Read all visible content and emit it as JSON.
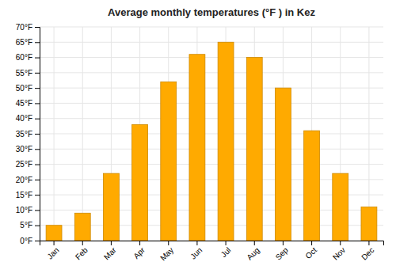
{
  "chart_data": {
    "type": "bar",
    "title": "Average monthly temperatures (°F ) in Kez",
    "categories": [
      "Jan",
      "Feb",
      "Mar",
      "Apr",
      "May",
      "Jun",
      "Jul",
      "Aug",
      "Sep",
      "Oct",
      "Nov",
      "Dec"
    ],
    "values": [
      5,
      9,
      22,
      38,
      52,
      61,
      65,
      60,
      50,
      36,
      22,
      11
    ],
    "color": "#FFAA00",
    "ylim": [
      0,
      70
    ],
    "yticks": [
      {
        "value": 0,
        "label": "0°F"
      },
      {
        "value": 5,
        "label": "5°F"
      },
      {
        "value": 10,
        "label": "10°F"
      },
      {
        "value": 15,
        "label": "15°F"
      },
      {
        "value": 20,
        "label": "20°F"
      },
      {
        "value": 25,
        "label": "25°F"
      },
      {
        "value": 30,
        "label": "30°F"
      },
      {
        "value": 35,
        "label": "35°F"
      },
      {
        "value": 40,
        "label": "40°F"
      },
      {
        "value": 45,
        "label": "45°F"
      },
      {
        "value": 50,
        "label": "50°F"
      },
      {
        "value": 55,
        "label": "55°F"
      },
      {
        "value": 60,
        "label": "60°F"
      },
      {
        "value": 65,
        "label": "65°F"
      },
      {
        "value": 70,
        "label": "70°F"
      }
    ],
    "grid": true
  }
}
